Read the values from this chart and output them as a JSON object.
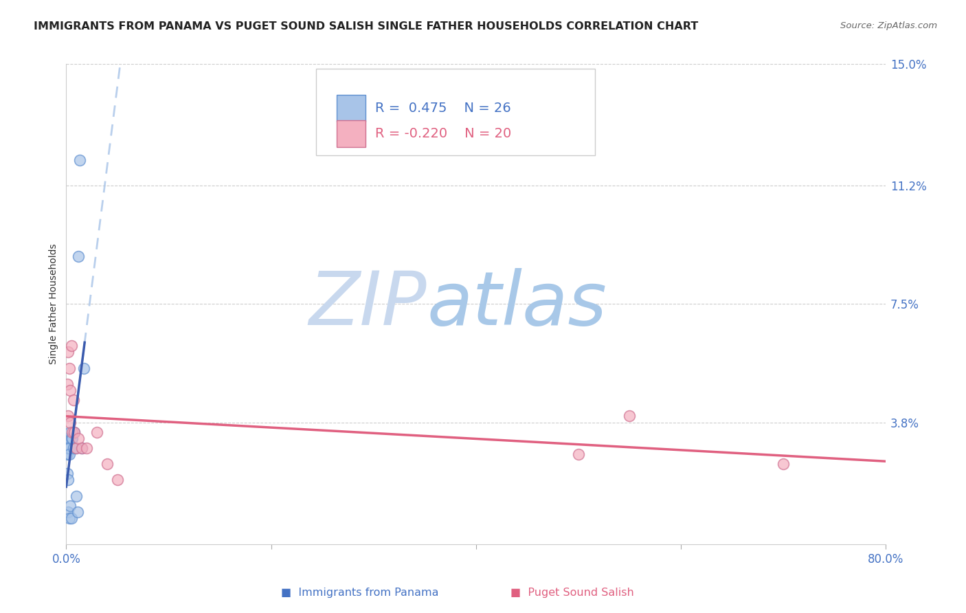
{
  "title": "IMMIGRANTS FROM PANAMA VS PUGET SOUND SALISH SINGLE FATHER HOUSEHOLDS CORRELATION CHART",
  "source": "Source: ZipAtlas.com",
  "ylabel": "Single Father Households",
  "xlim": [
    0.0,
    0.8
  ],
  "ylim": [
    0.0,
    0.15
  ],
  "yticks": [
    0.0,
    0.038,
    0.075,
    0.112,
    0.15
  ],
  "ytick_labels": [
    "",
    "3.8%",
    "7.5%",
    "11.2%",
    "15.0%"
  ],
  "xticks": [
    0.0,
    0.2,
    0.4,
    0.6,
    0.8
  ],
  "xtick_labels": [
    "0.0%",
    "",
    "",
    "",
    "80.0%"
  ],
  "blue_R": "0.475",
  "blue_N": "26",
  "pink_R": "-0.220",
  "pink_N": "20",
  "blue_scatter_x": [
    0.001,
    0.001,
    0.001,
    0.001,
    0.002,
    0.002,
    0.002,
    0.002,
    0.003,
    0.003,
    0.003,
    0.003,
    0.004,
    0.004,
    0.005,
    0.005,
    0.006,
    0.007,
    0.008,
    0.009,
    0.01,
    0.011,
    0.012,
    0.013,
    0.015,
    0.017
  ],
  "blue_scatter_y": [
    0.033,
    0.03,
    0.028,
    0.022,
    0.033,
    0.03,
    0.02,
    0.01,
    0.033,
    0.03,
    0.028,
    0.008,
    0.035,
    0.012,
    0.033,
    0.008,
    0.033,
    0.03,
    0.035,
    0.03,
    0.015,
    0.01,
    0.09,
    0.12,
    0.03,
    0.055
  ],
  "pink_scatter_x": [
    0.001,
    0.002,
    0.002,
    0.003,
    0.004,
    0.004,
    0.005,
    0.006,
    0.007,
    0.008,
    0.01,
    0.012,
    0.015,
    0.02,
    0.03,
    0.04,
    0.05,
    0.5,
    0.55,
    0.7
  ],
  "pink_scatter_y": [
    0.05,
    0.06,
    0.04,
    0.055,
    0.048,
    0.038,
    0.062,
    0.035,
    0.045,
    0.035,
    0.03,
    0.033,
    0.03,
    0.03,
    0.035,
    0.025,
    0.02,
    0.028,
    0.04,
    0.025
  ],
  "blue_line_color": "#3a5aad",
  "blue_scatter_color": "#a8c4e8",
  "blue_scatter_edge": "#6090d0",
  "pink_line_color": "#e06080",
  "pink_scatter_color": "#f4b0c0",
  "pink_scatter_edge": "#d07090",
  "background_color": "#ffffff",
  "grid_color": "#cccccc",
  "watermark_zip_color": "#c8d8ee",
  "watermark_atlas_color": "#a8c8e8",
  "title_fontsize": 11.5,
  "axis_label_fontsize": 10,
  "tick_fontsize": 12,
  "legend_fontsize": 14
}
